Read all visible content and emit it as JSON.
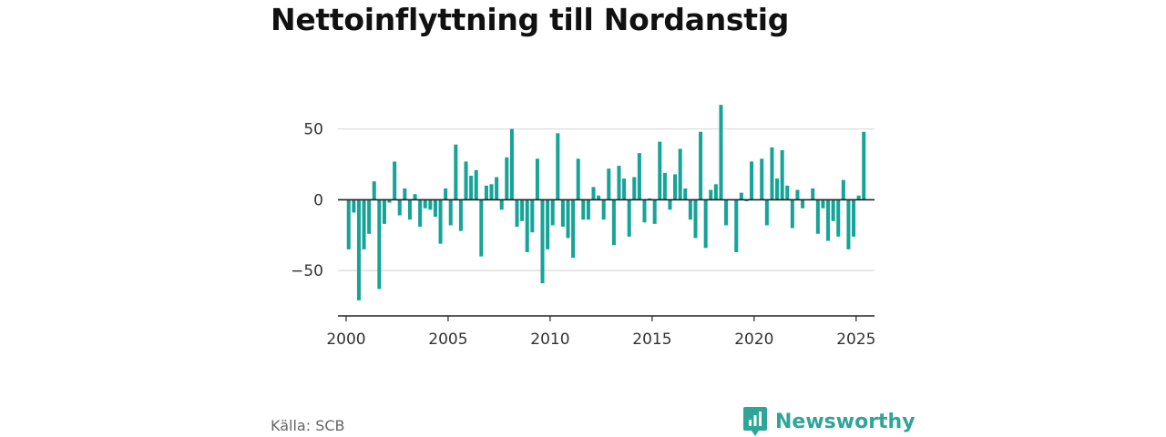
{
  "title": "Nettoinflyttning till Nordanstig",
  "source": "Källa: SCB",
  "brand": {
    "name": "Newsworthy",
    "logo_icon": "newsworthy-logo-icon",
    "color": "#2fa59a"
  },
  "chart_data": {
    "type": "bar",
    "bar_color": "#16a398",
    "xlim": [
      1999.6,
      2025.9
    ],
    "ylim": [
      -82,
      80
    ],
    "y_ticks": [
      50,
      0,
      -50
    ],
    "y_tick_labels": [
      "50",
      "0",
      "−50"
    ],
    "x_ticks": [
      2000,
      2005,
      2010,
      2015,
      2020,
      2025
    ],
    "x_tick_labels": [
      "2000",
      "2005",
      "2010",
      "2015",
      "2020",
      "2025"
    ],
    "grid": true,
    "x": [
      2000.125,
      2000.375,
      2000.625,
      2000.875,
      2001.125,
      2001.375,
      2001.625,
      2001.875,
      2002.125,
      2002.375,
      2002.625,
      2002.875,
      2003.125,
      2003.375,
      2003.625,
      2003.875,
      2004.125,
      2004.375,
      2004.625,
      2004.875,
      2005.125,
      2005.375,
      2005.625,
      2005.875,
      2006.125,
      2006.375,
      2006.625,
      2006.875,
      2007.125,
      2007.375,
      2007.625,
      2007.875,
      2008.125,
      2008.375,
      2008.625,
      2008.875,
      2009.125,
      2009.375,
      2009.625,
      2009.875,
      2010.125,
      2010.375,
      2010.625,
      2010.875,
      2011.125,
      2011.375,
      2011.625,
      2011.875,
      2012.125,
      2012.375,
      2012.625,
      2012.875,
      2013.125,
      2013.375,
      2013.625,
      2013.875,
      2014.125,
      2014.375,
      2014.625,
      2014.875,
      2015.125,
      2015.375,
      2015.625,
      2015.875,
      2016.125,
      2016.375,
      2016.625,
      2016.875,
      2017.125,
      2017.375,
      2017.625,
      2017.875,
      2018.125,
      2018.375,
      2018.625,
      2018.875,
      2019.125,
      2019.375,
      2019.625,
      2019.875,
      2020.125,
      2020.375,
      2020.625,
      2020.875,
      2021.125,
      2021.375,
      2021.625,
      2021.875,
      2022.125,
      2022.375,
      2022.625,
      2022.875,
      2023.125,
      2023.375,
      2023.625,
      2023.875,
      2024.125,
      2024.375,
      2024.625,
      2024.875,
      2025.125,
      2025.375
    ],
    "values": [
      -35,
      -9,
      -71,
      -35,
      -24,
      13,
      -63,
      -17,
      -2,
      27,
      -11,
      8,
      -14,
      4,
      -19,
      -6,
      -7,
      -12,
      -31,
      8,
      -18,
      39,
      -22,
      27,
      17,
      21,
      -40,
      10,
      11,
      16,
      -7,
      30,
      50,
      -19,
      -15,
      -37,
      -23,
      29,
      -59,
      -35,
      -18,
      47,
      -19,
      -27,
      -41,
      29,
      -14,
      -14,
      9,
      3,
      -14,
      22,
      -32,
      24,
      15,
      -26,
      16,
      33,
      -16,
      1,
      -17,
      41,
      19,
      -7,
      18,
      36,
      8,
      -14,
      -27,
      48,
      -34,
      7,
      11,
      67,
      -18,
      0,
      -37,
      5,
      -1,
      27,
      0,
      29,
      -18,
      37,
      15,
      35,
      10,
      -20,
      7,
      -6,
      0,
      8,
      -24,
      -6,
      -29,
      -15,
      -26,
      14,
      -35,
      -26,
      3,
      48
    ]
  }
}
